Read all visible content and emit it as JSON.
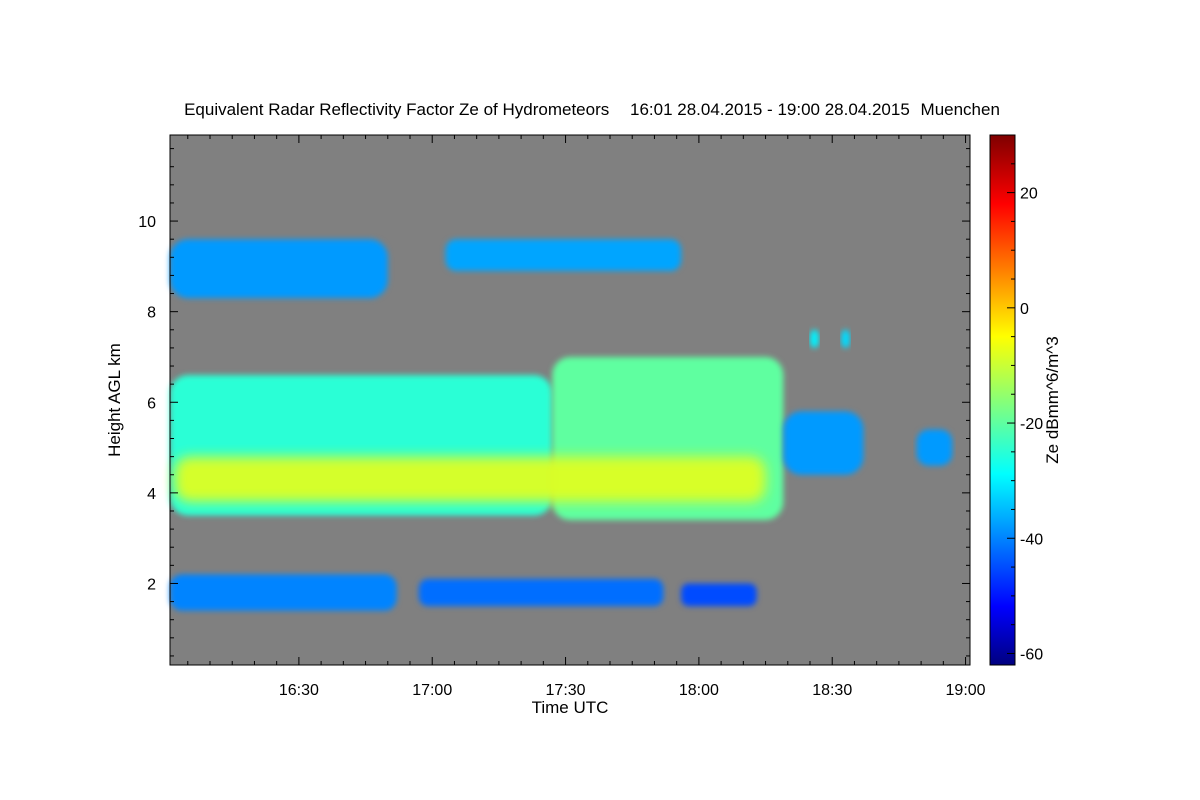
{
  "chart_data": {
    "type": "heatmap",
    "title": "Equivalent Radar Reflectivity Factor Ze of Hydrometeors",
    "period": "16:01 28.04.2015 - 19:00 28.04.2015",
    "site": "Muenchen",
    "xlabel": "Time UTC",
    "ylabel": "Height AGL km",
    "colorbar_label": "Ze dBmm^6/m^3",
    "x_range_minutes_utc": [
      961,
      1141
    ],
    "y_range_km": [
      0.2,
      11.9
    ],
    "x_ticks": [
      {
        "minute": 990,
        "label": "16:30"
      },
      {
        "minute": 1020,
        "label": "17:00"
      },
      {
        "minute": 1050,
        "label": "17:30"
      },
      {
        "minute": 1080,
        "label": "18:00"
      },
      {
        "minute": 1110,
        "label": "18:30"
      },
      {
        "minute": 1140,
        "label": "19:00"
      }
    ],
    "y_ticks": [
      {
        "value": 2,
        "label": "2"
      },
      {
        "value": 4,
        "label": "4"
      },
      {
        "value": 6,
        "label": "6"
      },
      {
        "value": 8,
        "label": "8"
      },
      {
        "value": 10,
        "label": "10"
      }
    ],
    "colorbar_range": [
      -62,
      30
    ],
    "colorbar_ticks": [
      {
        "value": 20,
        "label": "20"
      },
      {
        "value": 0,
        "label": "0"
      },
      {
        "value": -20,
        "label": "-20"
      },
      {
        "value": -40,
        "label": "-40"
      },
      {
        "value": -60,
        "label": "-60"
      }
    ],
    "background_color": "#808080",
    "regions": [
      {
        "name": "upper-cirrus-left",
        "t0": 961,
        "t1": 1010,
        "h0": 8.3,
        "h1": 9.6,
        "ze": -38
      },
      {
        "name": "upper-cirrus-right",
        "t0": 1023,
        "t1": 1076,
        "h0": 8.9,
        "h1": 9.6,
        "ze": -37
      },
      {
        "name": "main-cloud-left",
        "t0": 961,
        "t1": 1047,
        "h0": 3.5,
        "h1": 6.6,
        "ze": -25
      },
      {
        "name": "main-cloud-right",
        "t0": 1047,
        "t1": 1099,
        "h0": 3.4,
        "h1": 7.0,
        "ze": -20
      },
      {
        "name": "main-cloud-tail",
        "t0": 1099,
        "t1": 1117,
        "h0": 4.4,
        "h1": 5.8,
        "ze": -38
      },
      {
        "name": "core-band",
        "t0": 962,
        "t1": 1095,
        "h0": 3.8,
        "h1": 4.8,
        "ze": -8
      },
      {
        "name": "isolated-cell-east",
        "t0": 1129,
        "t1": 1137,
        "h0": 4.6,
        "h1": 5.4,
        "ze": -38
      },
      {
        "name": "small-cell-1",
        "t0": 1105,
        "t1": 1107,
        "h0": 7.2,
        "h1": 7.6,
        "ze": -30
      },
      {
        "name": "small-cell-2",
        "t0": 1112,
        "t1": 1114,
        "h0": 7.2,
        "h1": 7.6,
        "ze": -32
      },
      {
        "name": "low-layer-1",
        "t0": 961,
        "t1": 1012,
        "h0": 1.4,
        "h1": 2.2,
        "ze": -40
      },
      {
        "name": "low-layer-2",
        "t0": 1017,
        "t1": 1072,
        "h0": 1.5,
        "h1": 2.1,
        "ze": -42
      },
      {
        "name": "low-layer-3",
        "t0": 1076,
        "t1": 1093,
        "h0": 1.5,
        "h1": 2.0,
        "ze": -45
      }
    ]
  }
}
